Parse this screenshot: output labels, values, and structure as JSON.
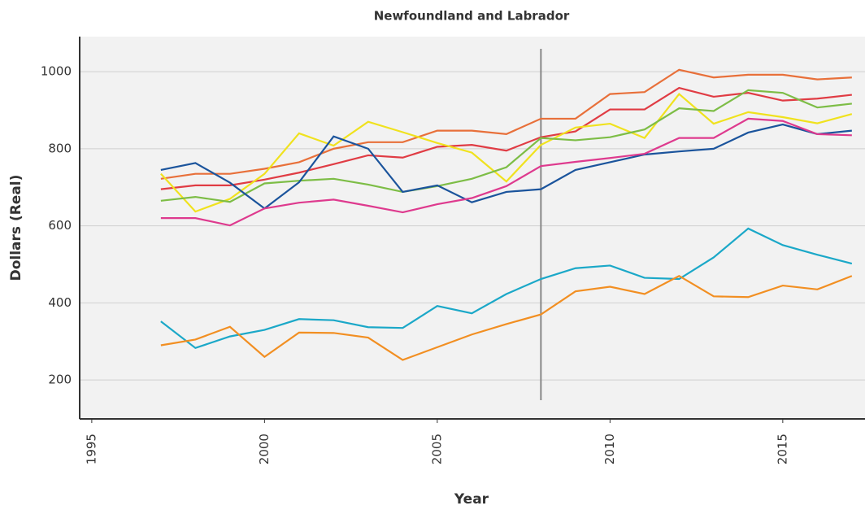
{
  "chart_data": {
    "type": "line",
    "title": "Newfoundland and Labrador",
    "x_label": "Year",
    "y_label": "Dollars (Real)",
    "x": [
      1997,
      1998,
      1999,
      2000,
      2001,
      2002,
      2003,
      2004,
      2005,
      2006,
      2007,
      2008,
      2009,
      2010,
      2011,
      2012,
      2013,
      2014,
      2015,
      2016,
      2017
    ],
    "xlim": [
      1994.65,
      2017.38
    ],
    "xticks": [
      1995,
      2000,
      2005,
      2010,
      2015
    ],
    "ylim": [
      99,
      1091
    ],
    "yticks": [
      200,
      400,
      600,
      800,
      1000
    ],
    "grid": true,
    "vline": 2008,
    "series": [
      {
        "color": "#e8703a",
        "values": [
          722,
          735,
          735,
          748,
          765,
          800,
          817,
          817,
          847,
          847,
          838,
          878,
          878,
          942,
          947,
          1005,
          985,
          992,
          992,
          980,
          985
        ]
      },
      {
        "color": "#e03c44",
        "values": [
          695,
          705,
          705,
          720,
          738,
          760,
          783,
          777,
          805,
          810,
          795,
          830,
          845,
          902,
          902,
          958,
          935,
          945,
          925,
          930,
          940
        ]
      },
      {
        "color": "#f0e21e",
        "values": [
          735,
          637,
          670,
          735,
          840,
          808,
          870,
          843,
          815,
          790,
          715,
          810,
          855,
          865,
          828,
          942,
          865,
          895,
          882,
          866,
          890
        ]
      },
      {
        "color": "#7dbd46",
        "values": [
          665,
          675,
          662,
          710,
          717,
          722,
          707,
          688,
          703,
          722,
          752,
          828,
          822,
          830,
          850,
          905,
          898,
          952,
          945,
          907,
          917
        ]
      },
      {
        "color": "#1b549c",
        "values": [
          745,
          763,
          712,
          645,
          713,
          832,
          800,
          688,
          705,
          661,
          688,
          695,
          745,
          765,
          785,
          793,
          800,
          842,
          863,
          838,
          847
        ]
      },
      {
        "color": "#de3a8e",
        "values": [
          620,
          620,
          601,
          645,
          660,
          668,
          652,
          635,
          656,
          672,
          703,
          755,
          766,
          776,
          787,
          828,
          828,
          878,
          872,
          838,
          835
        ]
      },
      {
        "color": "#1ba8c8",
        "values": [
          352,
          283,
          313,
          330,
          358,
          355,
          337,
          335,
          392,
          373,
          423,
          462,
          490,
          497,
          465,
          462,
          518,
          593,
          550,
          525,
          502
        ]
      },
      {
        "color": "#f28f22",
        "values": [
          290,
          305,
          338,
          260,
          323,
          322,
          310,
          252,
          285,
          318,
          345,
          370,
          430,
          442,
          423,
          470,
          417,
          415,
          445,
          435,
          470
        ]
      }
    ]
  }
}
